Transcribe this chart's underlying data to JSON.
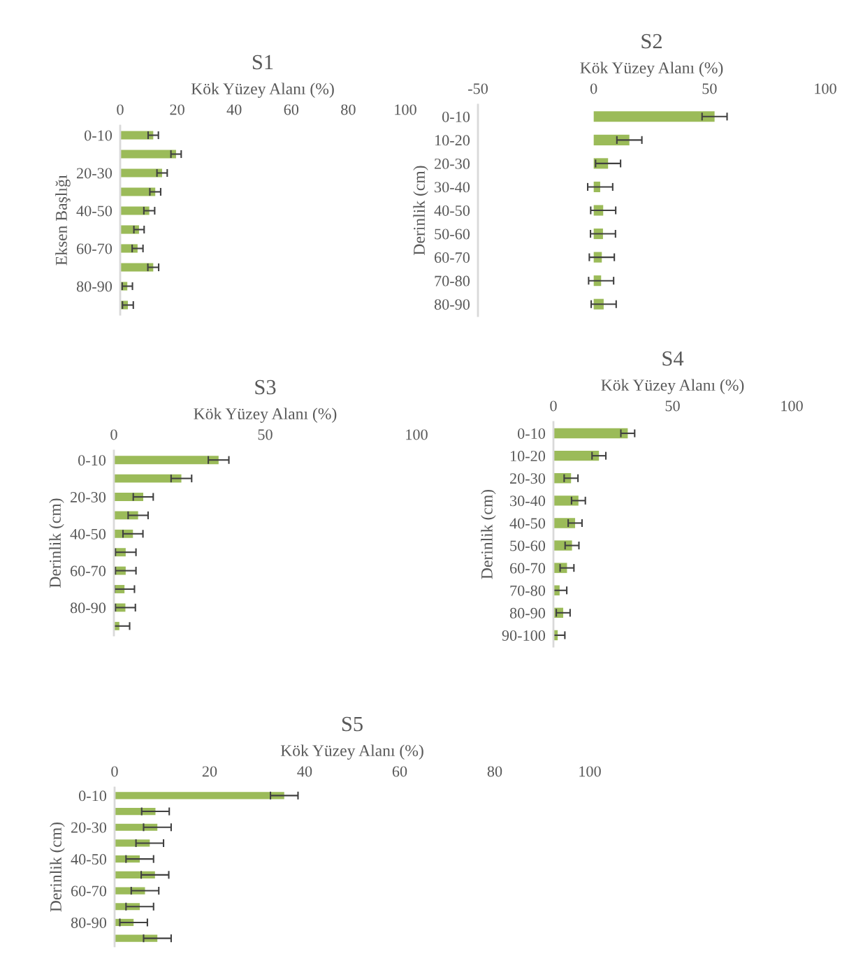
{
  "chart_data": [
    {
      "type": "bar",
      "orientation": "horizontal",
      "title": "S1",
      "xlabel": "Kök Yüzey Alanı (%)",
      "ylabel": "Eksen Başlığı",
      "color": "#9bbb59",
      "grid": false,
      "categories": [
        "0-10",
        null,
        "20-30",
        null,
        "40-50",
        null,
        "60-70",
        null,
        "80-90",
        null
      ],
      "values": [
        11.6,
        19.6,
        14.7,
        12.3,
        10.2,
        6.6,
        6.1,
        11.6,
        2.5,
        2.7
      ],
      "errors": [
        1.8,
        1.8,
        1.8,
        1.9,
        1.9,
        1.8,
        1.9,
        1.9,
        1.8,
        1.9
      ],
      "xlim": [
        0,
        100
      ],
      "xticks": [
        0,
        20,
        40,
        60,
        80,
        100
      ]
    },
    {
      "type": "bar",
      "orientation": "horizontal",
      "title": "S2",
      "xlabel": "Kök Yüzey Alanı (%)",
      "ylabel": "Derinlik (cm)",
      "color": "#9bbb59",
      "grid": false,
      "categories": [
        "0-10",
        "10-20",
        "20-30",
        "30-40",
        "40-50",
        "50-60",
        "60-70",
        "70-80",
        "80-90"
      ],
      "values": [
        52.2,
        15.4,
        6.2,
        2.8,
        4.1,
        4.0,
        3.5,
        3.2,
        4.3
      ],
      "errors": [
        5.4,
        5.4,
        5.4,
        5.4,
        5.4,
        5.4,
        5.4,
        5.4,
        5.4
      ],
      "xlim": [
        -50,
        100
      ],
      "xticks": [
        -50,
        0,
        50,
        100
      ]
    },
    {
      "type": "bar",
      "orientation": "horizontal",
      "title": "S3",
      "xlabel": "Kök Yüzey Alanı (%)",
      "ylabel": "Derinlik (cm)",
      "color": "#9bbb59",
      "grid": false,
      "categories": [
        "0-10",
        null,
        "20-30",
        null,
        "40-50",
        null,
        "60-70",
        null,
        "80-90",
        null
      ],
      "values": [
        34.6,
        22.3,
        9.7,
        8.0,
        6.3,
        3.9,
        3.9,
        3.5,
        3.8,
        1.8
      ],
      "errors": [
        3.4,
        3.4,
        3.3,
        3.3,
        3.3,
        3.4,
        3.4,
        3.3,
        3.3,
        3.4
      ],
      "xlim": [
        0,
        100
      ],
      "xticks": [
        0,
        50,
        100
      ]
    },
    {
      "type": "bar",
      "orientation": "horizontal",
      "title": "S4",
      "xlabel": "Kök Yüzey Alanı (%)",
      "ylabel": "Derinlik (cm)",
      "color": "#9bbb59",
      "grid": false,
      "categories": [
        "0-10",
        "10-20",
        "20-30",
        "30-40",
        "40-50",
        "50-60",
        "60-70",
        "70-80",
        "80-90",
        "90-100"
      ],
      "values": [
        31.2,
        19.1,
        7.4,
        10.5,
        9.1,
        7.8,
        5.7,
        2.6,
        4.1,
        1.8
      ],
      "errors": [
        2.9,
        2.9,
        2.9,
        2.9,
        2.9,
        2.9,
        2.9,
        3.0,
        2.9,
        3.0
      ],
      "xlim": [
        0,
        100
      ],
      "xticks": [
        0,
        50,
        100
      ]
    },
    {
      "type": "bar",
      "orientation": "horizontal",
      "title": "S5",
      "xlabel": "Kök Yüzey Alanı (%)",
      "ylabel": "Derinlik (cm)",
      "color": "#9bbb59",
      "grid": false,
      "categories": [
        "0-10",
        null,
        "20-30",
        null,
        "40-50",
        null,
        "60-70",
        null,
        "80-90",
        null
      ],
      "values": [
        35.7,
        8.6,
        9.0,
        7.4,
        5.3,
        8.5,
        6.4,
        5.3,
        4.0,
        9.0
      ],
      "errors": [
        2.9,
        2.9,
        2.9,
        2.9,
        2.9,
        2.9,
        2.9,
        2.9,
        2.9,
        2.9
      ],
      "xlim": [
        0,
        100
      ],
      "xticks": [
        0,
        20,
        40,
        60,
        80,
        100
      ]
    }
  ]
}
